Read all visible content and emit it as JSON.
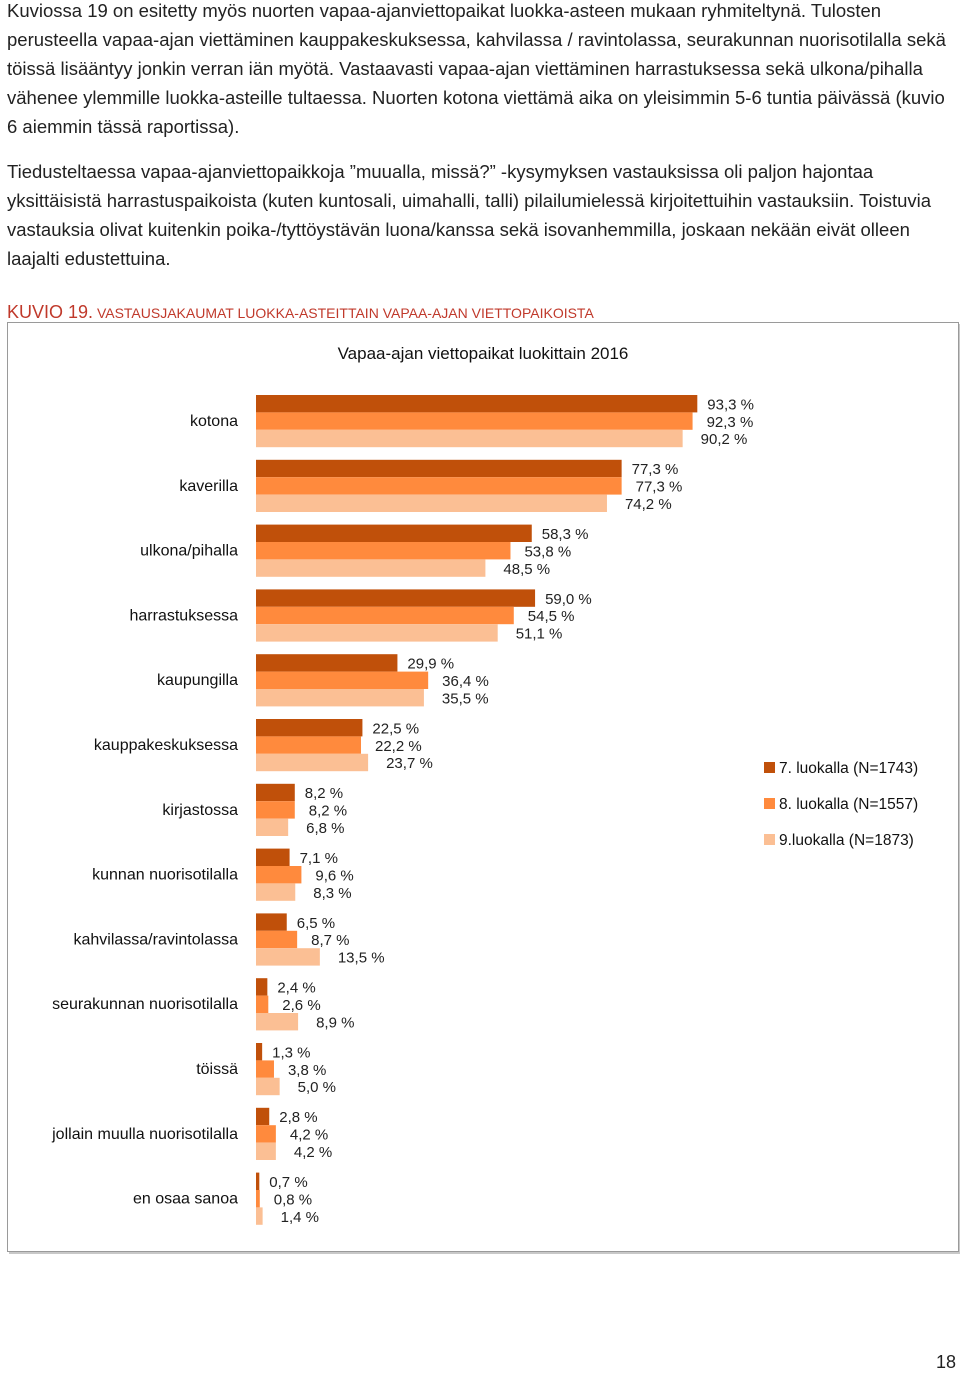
{
  "paragraphs": [
    "Kuviossa 19 on esitetty myös nuorten vapaa-ajanviettopaikat luokka-asteen mukaan ryhmiteltynä. Tulosten perusteella vapaa-ajan viettäminen kauppakeskuksessa, kahvilassa / ravintolassa, seurakunnan nuorisotilalla sekä töissä lisääntyy jonkin verran iän myötä. Vastaavasti vapaa-ajan viettäminen harrastuksessa sekä ulkona/pihalla vähenee ylemmille luokka-asteille tultaessa. Nuorten kotona viettämä aika on yleisimmin 5-6 tuntia päivässä (kuvio 6 aiemmin tässä raportissa).",
    "Tiedusteltaessa vapaa-ajanviettopaikkoja ”muualla, missä?” -kysymyksen vastauksissa oli paljon hajontaa yksittäisistä harrastuspaikoista (kuten kuntosali, uimahalli, talli) pilailumielessä kirjoitettuihin vastauksiin. Toistuvia vastauksia olivat kuitenkin poika-/tyttöystävän luona/kanssa sekä isovanhemmilla, joskaan nekään eivät olleen laajalti edustettuina."
  ],
  "caption": {
    "number": "KUVIO 19.",
    "text": "VASTAUSJAKAUMAT LUOKKA-ASTEITTAIN VAPAA-AJAN VIETTOPAIKOISTA"
  },
  "page_number": "18",
  "colors": {
    "series": [
      "#c0500a",
      "#ff8a3d",
      "#fbbf94"
    ],
    "caption": "#c0392b"
  },
  "chart_data": {
    "type": "bar",
    "orientation": "horizontal",
    "title": "Vapaa-ajan viettopaikat luokittain 2016",
    "categories": [
      "kotona",
      "kaverilla",
      "ulkona/pihalla",
      "harrastuksessa",
      "kaupungilla",
      "kauppakeskuksessa",
      "kirjastossa",
      "kunnan nuorisotilalla",
      "kahvilassa/ravintolassa",
      "seurakunnan nuorisotilalla",
      "töissä",
      "jollain muulla nuorisotilalla",
      "en osaa sanoa"
    ],
    "series": [
      {
        "name": "7. luokalla (N=1743)",
        "values": [
          93.3,
          77.3,
          58.3,
          59.0,
          29.9,
          22.5,
          8.2,
          7.1,
          6.5,
          2.4,
          1.3,
          2.8,
          0.7
        ],
        "labels": [
          "93,3 %",
          "77,3 %",
          "58,3 %",
          "59,0 %",
          "29,9 %",
          "22,5 %",
          "8,2 %",
          "7,1 %",
          "6,5 %",
          "2,4 %",
          "1,3 %",
          "2,8 %",
          "0,7 %"
        ]
      },
      {
        "name": "8. luokalla (N=1557)",
        "values": [
          92.3,
          77.3,
          53.8,
          54.5,
          36.4,
          22.2,
          8.2,
          9.6,
          8.7,
          2.6,
          3.8,
          4.2,
          0.8
        ],
        "labels": [
          "92,3 %",
          "77,3 %",
          "53,8 %",
          "54,5 %",
          "36,4 %",
          "22,2 %",
          "8,2 %",
          "9,6 %",
          "8,7 %",
          "2,6 %",
          "3,8 %",
          "4,2 %",
          "0,8 %"
        ]
      },
      {
        "name": "9.luokalla (N=1873)",
        "values": [
          90.2,
          74.2,
          48.5,
          51.1,
          35.5,
          23.7,
          6.8,
          8.3,
          13.5,
          8.9,
          5.0,
          4.2,
          1.4
        ],
        "labels": [
          "90,2 %",
          "74,2 %",
          "48,5 %",
          "51,1 %",
          "35,5 %",
          "23,7 %",
          "6,8 %",
          "8,3 %",
          "13,5 %",
          "8,9 %",
          "5,0 %",
          "4,2 %",
          "1,4 %"
        ]
      }
    ],
    "xlim": [
      0,
      100
    ],
    "grid": false,
    "legend": "right"
  }
}
